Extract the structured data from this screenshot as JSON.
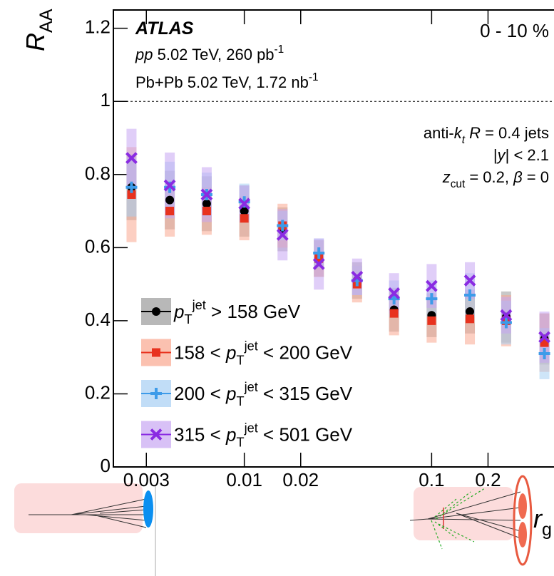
{
  "chart_data": {
    "type": "scatter",
    "title": "*ATLAS*",
    "annotations": [
      "*pp* 5.02 TeV, 260 pb^{-1}",
      "Pb+Pb 5.02 TeV, 1.72 nb^{-1}",
      "0 - 10 %",
      "anti-*k*_{*t*} *R* = 0.4 jets",
      "|*y*| < 2.1",
      "*z*_{cut} = 0.2, *β* = 0"
    ],
    "y_label": "*R*_{AA}",
    "x_label": "*r*_{g}",
    "log_x": true,
    "reference_line": 1,
    "xlim": [
      0.002,
      0.45
    ],
    "xticks": [
      0.003,
      0.01,
      0.02,
      0.1,
      0.2
    ],
    "ylim": [
      0,
      1.25
    ],
    "yticks": [
      0,
      0.2,
      0.4,
      0.6,
      0.8,
      1,
      1.2
    ],
    "x": [
      0.0025,
      0.004,
      0.0063,
      0.01,
      0.016,
      0.025,
      0.04,
      0.063,
      0.1,
      0.16,
      0.25,
      0.4
    ],
    "series": [
      {
        "name": "*p*_{T}^{jet} > 158 GeV",
        "color": "#000000",
        "band_color": "#9a9a9a",
        "marker": "circle",
        "values": [
          0.765,
          0.73,
          0.72,
          0.7,
          0.65,
          0.57,
          0.51,
          0.43,
          0.415,
          0.425,
          0.41,
          0.35
        ],
        "errors": [
          0.09,
          0.08,
          0.075,
          0.07,
          0.06,
          0.05,
          0.05,
          0.06,
          0.06,
          0.06,
          0.07,
          0.07
        ]
      },
      {
        "name": "158 < *p*_{T}^{jet} < 200 GeV",
        "color": "#e8321e",
        "band_color": "#f9a78f",
        "marker": "square",
        "values": [
          0.745,
          0.7,
          0.7,
          0.68,
          0.66,
          0.57,
          0.5,
          0.42,
          0.4,
          0.405,
          0.4,
          0.34
        ],
        "errors": [
          0.13,
          0.07,
          0.065,
          0.06,
          0.06,
          0.05,
          0.05,
          0.06,
          0.06,
          0.07,
          0.07,
          0.08
        ]
      },
      {
        "name": "200 < *p*_{T}^{jet} < 315 GeV",
        "color": "#3d9be9",
        "band_color": "#a6cff3",
        "marker": "plus",
        "values": [
          0.765,
          0.765,
          0.745,
          0.725,
          0.66,
          0.585,
          0.51,
          0.46,
          0.46,
          0.47,
          0.395,
          0.31
        ],
        "errors": [
          0.08,
          0.07,
          0.06,
          0.05,
          0.04,
          0.04,
          0.04,
          0.05,
          0.05,
          0.06,
          0.06,
          0.07
        ]
      },
      {
        "name": "315 < *p*_{T}^{jet} < 501 GeV",
        "color": "#8a2be2",
        "band_color": "#c7a6f2",
        "marker": "cross",
        "values": [
          0.845,
          0.77,
          0.745,
          0.72,
          0.635,
          0.555,
          0.52,
          0.475,
          0.495,
          0.51,
          0.415,
          0.355
        ],
        "errors": [
          0.08,
          0.09,
          0.075,
          0.05,
          0.07,
          0.07,
          0.05,
          0.055,
          0.06,
          0.05,
          0.05,
          0.07
        ]
      }
    ]
  }
}
